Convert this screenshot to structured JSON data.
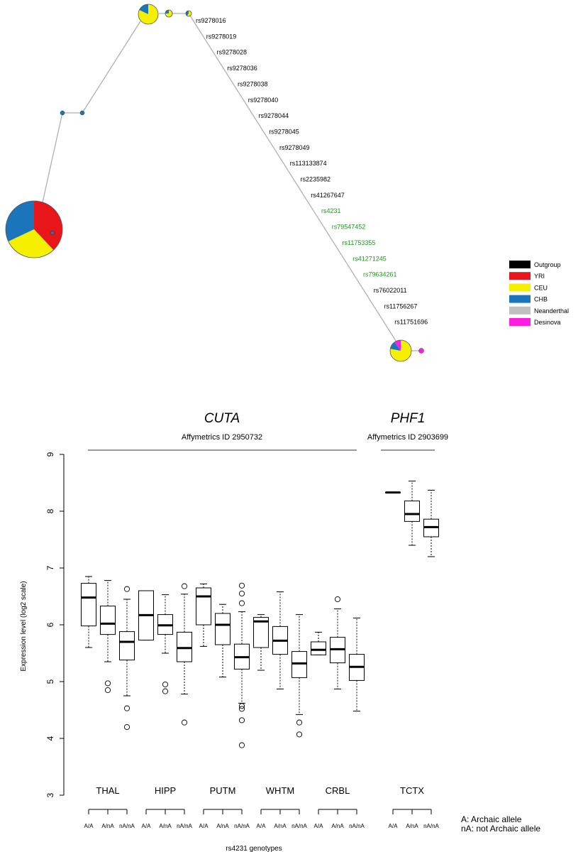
{
  "chart_data": [
    {
      "type": "network",
      "title": "",
      "snp_labels": [
        {
          "id": "rs9278016",
          "color": "#000000"
        },
        {
          "id": "rs9278019",
          "color": "#000000"
        },
        {
          "id": "rs9278028",
          "color": "#000000"
        },
        {
          "id": "rs9278036",
          "color": "#000000"
        },
        {
          "id": "rs9278038",
          "color": "#000000"
        },
        {
          "id": "rs9278040",
          "color": "#000000"
        },
        {
          "id": "rs9278044",
          "color": "#000000"
        },
        {
          "id": "rs9278045",
          "color": "#000000"
        },
        {
          "id": "rs9278049",
          "color": "#000000"
        },
        {
          "id": "rs113133874",
          "color": "#000000"
        },
        {
          "id": "rs2235982",
          "color": "#000000"
        },
        {
          "id": "rs41267647",
          "color": "#000000"
        },
        {
          "id": "rs4231",
          "color": "#1a9a1a"
        },
        {
          "id": "rs79547452",
          "color": "#1a9a1a"
        },
        {
          "id": "rs11753355",
          "color": "#1a9a1a"
        },
        {
          "id": "rs41271245",
          "color": "#1a9a1a"
        },
        {
          "id": "rs79634261",
          "color": "#1a9a1a"
        },
        {
          "id": "rs76022011",
          "color": "#000000"
        },
        {
          "id": "rs11756267",
          "color": "#000000"
        },
        {
          "id": "rs11751696",
          "color": "#000000"
        }
      ],
      "legend": [
        {
          "label": "Outgroup",
          "color": "#000000"
        },
        {
          "label": "YRI",
          "color": "#e8161b"
        },
        {
          "label": "CEU",
          "color": "#f5ef00"
        },
        {
          "label": "CHB",
          "color": "#1b75bb"
        },
        {
          "label": "Neanderthal",
          "color": "#c0c0c0"
        },
        {
          "label": "Desinova",
          "color": "#ff1ee0"
        }
      ],
      "nodes": [
        {
          "name": "large-haplotype",
          "slices": [
            {
              "pop": "YRI",
              "frac": 0.38
            },
            {
              "pop": "CEU",
              "frac": 0.3
            },
            {
              "pop": "CHB",
              "frac": 0.32
            }
          ]
        },
        {
          "name": "ceu-haplotype",
          "slices": [
            {
              "pop": "CEU",
              "frac": 0.82
            },
            {
              "pop": "CHB",
              "frac": 0.18
            }
          ]
        },
        {
          "name": "small-ceu-1",
          "slices": [
            {
              "pop": "CEU",
              "frac": 0.75
            },
            {
              "pop": "CHB",
              "frac": 0.25
            }
          ]
        },
        {
          "name": "small-ceu-2",
          "slices": [
            {
              "pop": "CEU",
              "frac": 0.6
            },
            {
              "pop": "CHB",
              "frac": 0.4
            }
          ]
        },
        {
          "name": "archaic-haplotype",
          "slices": [
            {
              "pop": "CEU",
              "frac": 0.78
            },
            {
              "pop": "CHB",
              "frac": 0.12
            },
            {
              "pop": "Desinova",
              "frac": 0.1
            }
          ]
        }
      ]
    },
    {
      "type": "boxplot",
      "ylabel": "Expression level (log2 scale)",
      "xlabel": "rs4231 genotypes",
      "ylim": [
        3,
        9
      ],
      "yticks": [
        3,
        4,
        5,
        6,
        7,
        8,
        9
      ],
      "genes": [
        {
          "name": "CUTA",
          "affy": "Affymetrics ID 2950732"
        },
        {
          "name": "PHF1",
          "affy": "Affymetrics ID 2903699"
        }
      ],
      "regions": [
        {
          "name": "THAL",
          "boxes": [
            {
              "genotype": "A/A",
              "min": 5.6,
              "q1": 5.98,
              "median": 6.48,
              "q3": 6.73,
              "max": 6.85,
              "outliers": []
            },
            {
              "genotype": "A/nA",
              "min": 5.35,
              "q1": 5.83,
              "median": 6.02,
              "q3": 6.33,
              "max": 6.78,
              "outliers": [
                4.97,
                4.85
              ]
            },
            {
              "genotype": "nA/nA",
              "min": 4.75,
              "q1": 5.38,
              "median": 5.7,
              "q3": 5.88,
              "max": 6.45,
              "outliers": [
                6.63,
                4.53,
                4.2
              ]
            }
          ]
        },
        {
          "name": "HIPP",
          "boxes": [
            {
              "genotype": "A/A",
              "min": 5.73,
              "q1": 5.73,
              "median": 6.17,
              "q3": 6.6,
              "max": 6.6,
              "outliers": []
            },
            {
              "genotype": "A/nA",
              "min": 5.5,
              "q1": 5.83,
              "median": 5.99,
              "q3": 6.18,
              "max": 6.53,
              "outliers": [
                4.95,
                4.83
              ]
            },
            {
              "genotype": "nA/nA",
              "min": 4.78,
              "q1": 5.35,
              "median": 5.59,
              "q3": 5.87,
              "max": 6.54,
              "outliers": [
                6.68,
                4.28
              ]
            }
          ]
        },
        {
          "name": "PUTM",
          "boxes": [
            {
              "genotype": "A/A",
              "min": 5.62,
              "q1": 6.0,
              "median": 6.5,
              "q3": 6.65,
              "max": 6.72,
              "outliers": []
            },
            {
              "genotype": "A/nA",
              "min": 5.08,
              "q1": 5.65,
              "median": 6.0,
              "q3": 6.2,
              "max": 6.36,
              "outliers": []
            },
            {
              "genotype": "nA/nA",
              "min": 4.62,
              "q1": 5.22,
              "median": 5.43,
              "q3": 5.66,
              "max": 6.23,
              "outliers": [
                6.69,
                6.55,
                6.38,
                4.57,
                4.52,
                4.32,
                3.88
              ]
            }
          ]
        },
        {
          "name": "WHTM",
          "boxes": [
            {
              "genotype": "A/A",
              "min": 5.2,
              "q1": 5.6,
              "median": 6.06,
              "q3": 6.13,
              "max": 6.18,
              "outliers": []
            },
            {
              "genotype": "A/nA",
              "min": 4.87,
              "q1": 5.48,
              "median": 5.72,
              "q3": 5.97,
              "max": 6.58,
              "outliers": []
            },
            {
              "genotype": "nA/nA",
              "min": 4.42,
              "q1": 5.07,
              "median": 5.32,
              "q3": 5.53,
              "max": 6.18,
              "outliers": [
                4.28,
                4.07
              ]
            }
          ]
        },
        {
          "name": "CRBL",
          "boxes": [
            {
              "genotype": "A/A",
              "min": 5.47,
              "q1": 5.47,
              "median": 5.56,
              "q3": 5.7,
              "max": 5.87,
              "outliers": []
            },
            {
              "genotype": "A/nA",
              "min": 4.87,
              "q1": 5.33,
              "median": 5.57,
              "q3": 5.78,
              "max": 6.28,
              "outliers": [
                6.45
              ]
            },
            {
              "genotype": "nA/nA",
              "min": 4.48,
              "q1": 5.02,
              "median": 5.26,
              "q3": 5.48,
              "max": 6.12,
              "outliers": []
            }
          ]
        },
        {
          "name": "TCTX",
          "boxes": [
            {
              "genotype": "A/A",
              "min": 8.33,
              "q1": 8.33,
              "median": 8.33,
              "q3": 8.33,
              "max": 8.33,
              "outliers": []
            },
            {
              "genotype": "A/nA",
              "min": 7.4,
              "q1": 7.82,
              "median": 7.95,
              "q3": 8.18,
              "max": 8.53,
              "outliers": []
            },
            {
              "genotype": "nA/nA",
              "min": 7.2,
              "q1": 7.55,
              "median": 7.72,
              "q3": 7.86,
              "max": 8.37,
              "outliers": []
            }
          ]
        }
      ],
      "footnote": [
        "A: Archaic allele",
        "nA: not Archaic allele"
      ]
    }
  ]
}
